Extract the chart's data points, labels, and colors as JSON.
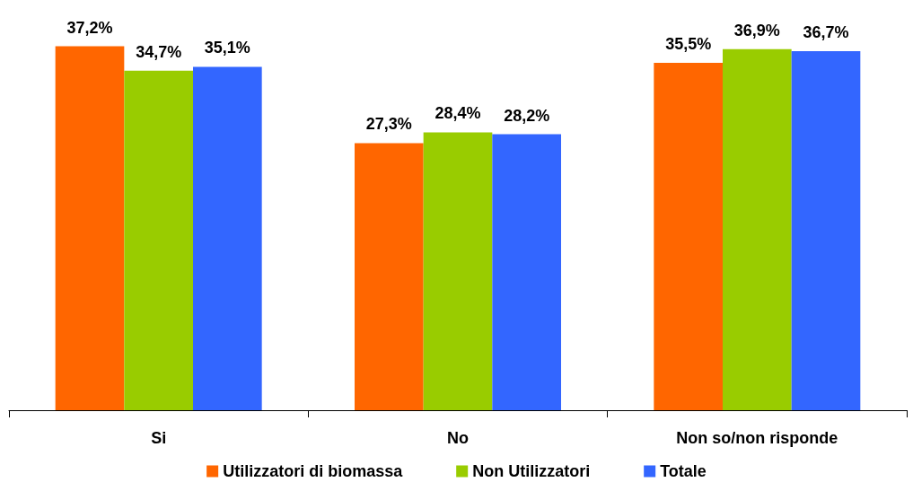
{
  "chart_data": {
    "type": "bar",
    "categories": [
      "Si",
      "No",
      "Non so/non risponde"
    ],
    "series": [
      {
        "name": "Utilizzatori di biomassa",
        "color": "#ff6600",
        "values": [
          37.2,
          27.3,
          35.5
        ],
        "value_labels": [
          "37,2%",
          "27,3%",
          "35,5%"
        ]
      },
      {
        "name": "Non Utilizzatori",
        "color": "#99cc00",
        "values": [
          34.7,
          28.4,
          36.9
        ],
        "value_labels": [
          "34,7%",
          "28,4%",
          "36,9%"
        ]
      },
      {
        "name": "Totale",
        "color": "#3366ff",
        "values": [
          35.1,
          28.2,
          36.7
        ],
        "value_labels": [
          "35,1%",
          "28,2%",
          "36,7%"
        ]
      }
    ],
    "grid": false,
    "legend": "bottom"
  }
}
